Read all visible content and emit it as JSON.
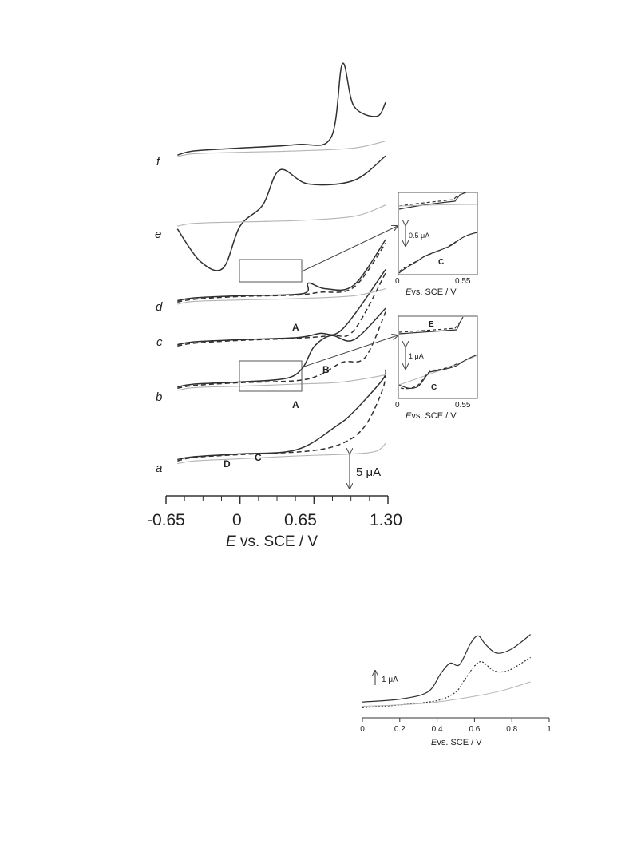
{
  "colors": {
    "solid": "#303030",
    "dashed": "#303030",
    "gray": "#b4b4b4",
    "frame": "#555555"
  },
  "chart_data": [
    {
      "type": "line",
      "title": "",
      "xlabel_italic": "E",
      "xlabel_rest": " vs. SCE / V",
      "xlim": [
        -0.65,
        1.3
      ],
      "xticks": [
        "-0.65",
        "0",
        "0.65",
        "1.30"
      ],
      "scale_bar": "5 μA",
      "trace_labels": [
        "a",
        "b",
        "c",
        "d",
        "e",
        "f"
      ],
      "peak_labels": [
        "A",
        "B",
        "A",
        "C",
        "D"
      ],
      "series": [
        {
          "trace": "a",
          "style": "solid",
          "x": [
            -0.55,
            -0.4,
            0,
            0.5,
            0.85,
            1.0,
            1.25,
            1.28
          ],
          "y": [
            1.2,
            1.6,
            2.0,
            2.6,
            6.0,
            8.0,
            12.5,
            14.0
          ]
        },
        {
          "trace": "a",
          "style": "dashed",
          "x": [
            -0.55,
            -0.4,
            0,
            0.6,
            0.9,
            1.1,
            1.25,
            1.28
          ],
          "y": [
            1.0,
            1.5,
            1.9,
            2.4,
            3.5,
            6.0,
            11.0,
            13.5
          ]
        },
        {
          "trace": "a",
          "style": "gray",
          "x": [
            -0.55,
            -0.4,
            0,
            0.5,
            1.0,
            1.2,
            1.28
          ],
          "y": [
            0.6,
            1.0,
            1.3,
            1.7,
            2.0,
            2.4,
            3.5
          ]
        },
        {
          "trace": "b",
          "style": "solid",
          "x": [
            -0.55,
            -0.4,
            0,
            0.4,
            0.55,
            0.65,
            0.8,
            1.0,
            1.28
          ],
          "y": [
            1.3,
            1.7,
            2.0,
            2.5,
            4.0,
            7.0,
            8.6,
            8.0,
            12.5
          ]
        },
        {
          "trace": "b",
          "style": "dashed",
          "x": [
            -0.55,
            -0.4,
            0,
            0.5,
            0.7,
            0.9,
            1.1,
            1.28
          ],
          "y": [
            1.1,
            1.5,
            1.9,
            2.2,
            3.0,
            4.8,
            5.5,
            12.0
          ]
        },
        {
          "trace": "b",
          "style": "gray",
          "x": [
            -0.55,
            -0.4,
            0,
            0.5,
            0.9,
            1.28
          ],
          "y": [
            0.8,
            1.2,
            1.4,
            1.7,
            2.0,
            3.0
          ]
        },
        {
          "trace": "c",
          "style": "solid",
          "x": [
            -0.55,
            -0.4,
            0,
            0.5,
            0.7,
            0.9,
            1.28
          ],
          "y": [
            1.3,
            1.7,
            2.0,
            2.3,
            2.9,
            3.5,
            12.0
          ]
        },
        {
          "trace": "c",
          "style": "dashed",
          "x": [
            -0.55,
            -0.4,
            0,
            0.5,
            0.8,
            1.0,
            1.28
          ],
          "y": [
            1.1,
            1.5,
            1.9,
            2.2,
            2.6,
            3.3,
            11.5
          ]
        },
        {
          "trace": "d",
          "style": "solid",
          "x": [
            -0.55,
            -0.4,
            0,
            0.55,
            0.6,
            0.75,
            1.0,
            1.28
          ],
          "y": [
            1.3,
            1.7,
            2.0,
            2.3,
            3.8,
            3.0,
            3.5,
            10.0
          ]
        },
        {
          "trace": "d",
          "style": "dashed",
          "x": [
            -0.55,
            -0.4,
            0,
            0.5,
            0.7,
            1.0,
            1.28
          ],
          "y": [
            1.1,
            1.5,
            1.9,
            2.1,
            2.5,
            3.2,
            9.5
          ]
        },
        {
          "trace": "d",
          "style": "gray",
          "x": [
            -0.55,
            -0.4,
            0,
            0.5,
            1.0,
            1.28
          ],
          "y": [
            0.8,
            1.2,
            1.4,
            1.6,
            2.0,
            3.0
          ]
        },
        {
          "trace": "e",
          "style": "solid",
          "x": [
            -0.55,
            -0.35,
            -0.15,
            0,
            0.2,
            0.35,
            0.6,
            1.0,
            1.28
          ],
          "y": [
            0.6,
            -4.0,
            -5.0,
            1.0,
            4.0,
            9.0,
            7.0,
            7.5,
            11.0
          ]
        },
        {
          "trace": "e",
          "style": "gray",
          "x": [
            -0.55,
            -0.4,
            0,
            0.5,
            1.0,
            1.28
          ],
          "y": [
            1.0,
            1.4,
            1.6,
            1.8,
            2.4,
            4.0
          ]
        },
        {
          "trace": "f",
          "style": "solid",
          "x": [
            -0.55,
            -0.4,
            0,
            0.5,
            0.8,
            0.9,
            1.0,
            1.2,
            1.28
          ],
          "y": [
            1.0,
            1.6,
            2.0,
            2.5,
            3.5,
            14.0,
            8.0,
            6.5,
            8.5
          ]
        },
        {
          "trace": "f",
          "style": "gray",
          "x": [
            -0.55,
            -0.4,
            0,
            0.5,
            1.0,
            1.28
          ],
          "y": [
            0.8,
            1.2,
            1.4,
            1.6,
            2.0,
            3.0
          ]
        }
      ]
    },
    {
      "type": "line",
      "title": "",
      "xlabel_italic": "E",
      "xlabel_rest": "vs. SCE / V",
      "xlim": [
        0,
        0.55
      ],
      "xticks": [
        "0",
        "0.55"
      ],
      "scale_bar": "0.5 μA",
      "peak_labels": [
        "C"
      ]
    },
    {
      "type": "line",
      "title": "",
      "xlabel_italic": "E",
      "xlabel_rest": "vs. SCE / V",
      "xlim": [
        0,
        0.55
      ],
      "xticks": [
        "0",
        "0.55"
      ],
      "scale_bar": "1 μA",
      "peak_labels": [
        "E",
        "C"
      ]
    },
    {
      "type": "line",
      "title": "",
      "xlabel_italic": "E",
      "xlabel_rest": "vs. SCE / V",
      "xlim": [
        0,
        1
      ],
      "xticks": [
        "0",
        "0.2",
        "0.4",
        "0.6",
        "0.8",
        "1"
      ],
      "scale_bar": "1 μA",
      "series": [
        {
          "style": "solid",
          "x": [
            0,
            0.2,
            0.35,
            0.42,
            0.47,
            0.52,
            0.58,
            0.62,
            0.66,
            0.72,
            0.8,
            0.9
          ],
          "y": [
            0.6,
            0.8,
            1.3,
            2.6,
            3.3,
            3.2,
            4.7,
            5.2,
            4.6,
            4.0,
            4.3,
            5.3
          ]
        },
        {
          "style": "dotted",
          "x": [
            0,
            0.2,
            0.4,
            0.5,
            0.55,
            0.6,
            0.64,
            0.7,
            0.75,
            0.8,
            0.9
          ],
          "y": [
            0.2,
            0.4,
            0.7,
            1.3,
            2.2,
            3.1,
            3.4,
            2.8,
            2.7,
            2.9,
            3.7
          ]
        },
        {
          "style": "gray",
          "x": [
            0,
            0.2,
            0.4,
            0.6,
            0.75,
            0.9
          ],
          "y": [
            0.3,
            0.4,
            0.6,
            1.0,
            1.4,
            2.0
          ]
        }
      ]
    }
  ]
}
